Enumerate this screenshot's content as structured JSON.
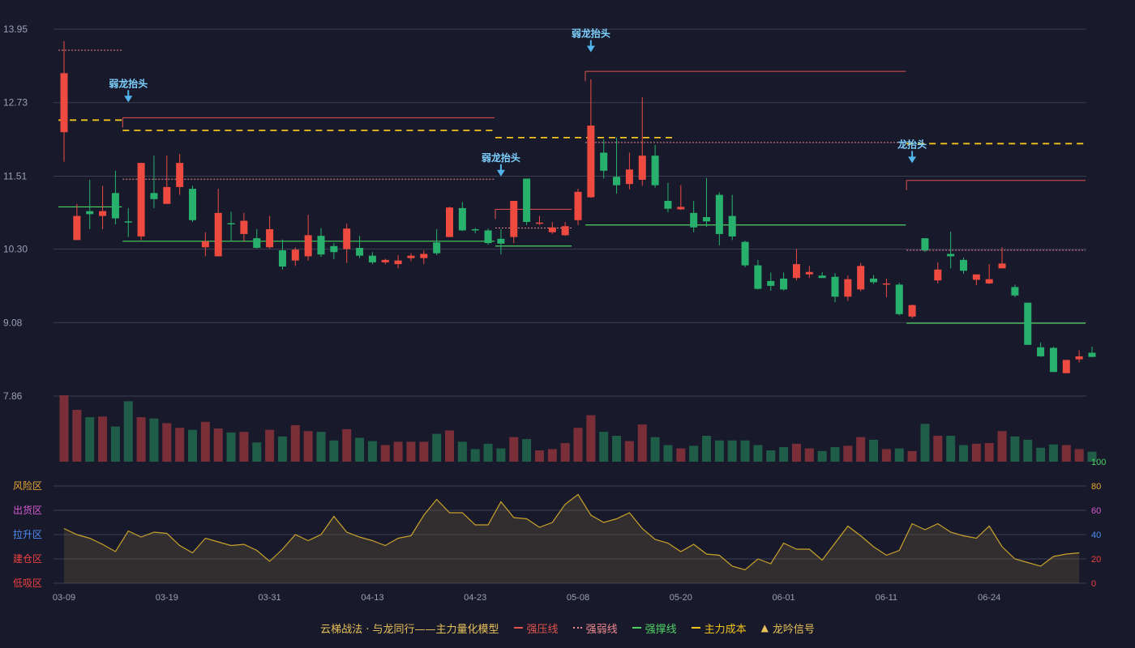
{
  "chart_data": {
    "type": "candlestick",
    "title": "",
    "price_axis": {
      "min": 7.86,
      "max": 13.95,
      "ticks": [
        7.86,
        9.08,
        10.3,
        11.51,
        12.73,
        13.95
      ]
    },
    "indicator_axis": {
      "min": 0,
      "max": 100,
      "ticks": [
        0,
        20,
        40,
        60,
        80,
        100
      ]
    },
    "zones": [
      "低吸区",
      "建仓区",
      "拉升区",
      "出货区",
      "风险区"
    ],
    "date_ticks": [
      {
        "i": 0,
        "label": "03-09"
      },
      {
        "i": 8,
        "label": "03-19"
      },
      {
        "i": 16,
        "label": "03-31"
      },
      {
        "i": 24,
        "label": "04-13"
      },
      {
        "i": 32,
        "label": "04-23"
      },
      {
        "i": 40,
        "label": "05-08"
      },
      {
        "i": 48,
        "label": "05-20"
      },
      {
        "i": 56,
        "label": "06-01"
      },
      {
        "i": 64,
        "label": "06-11"
      },
      {
        "i": 72,
        "label": "06-24"
      }
    ],
    "candles": [
      [
        12.24,
        13.22,
        13.75,
        11.75
      ],
      [
        10.45,
        10.85,
        11.05,
        10.45
      ],
      [
        10.93,
        10.88,
        11.45,
        10.63
      ],
      [
        10.85,
        10.93,
        11.35,
        10.63
      ],
      [
        11.23,
        10.81,
        11.6,
        10.71
      ],
      [
        10.76,
        10.75,
        10.98,
        10.5
      ],
      [
        10.51,
        11.73,
        11.73,
        10.45
      ],
      [
        11.23,
        11.13,
        11.85,
        10.98
      ],
      [
        11.05,
        11.33,
        11.85,
        11.05
      ],
      [
        11.33,
        11.73,
        11.88,
        11.2
      ],
      [
        11.3,
        10.78,
        11.35,
        10.75
      ],
      [
        10.33,
        10.43,
        10.58,
        10.18
      ],
      [
        10.18,
        10.9,
        11.3,
        10.18
      ],
      [
        10.73,
        10.71,
        10.92,
        10.43
      ],
      [
        10.55,
        10.77,
        10.9,
        10.43
      ],
      [
        10.48,
        10.32,
        10.63,
        10.31
      ],
      [
        10.33,
        10.63,
        10.85,
        10.31
      ],
      [
        10.28,
        10.01,
        10.46,
        9.96
      ],
      [
        10.11,
        10.29,
        10.33,
        10.02
      ],
      [
        10.18,
        10.53,
        10.87,
        10.11
      ],
      [
        10.52,
        10.21,
        10.65,
        10.17
      ],
      [
        10.35,
        10.25,
        10.4,
        10.13
      ],
      [
        10.3,
        10.64,
        10.72,
        10.07
      ],
      [
        10.32,
        10.19,
        10.52,
        10.15
      ],
      [
        10.19,
        10.08,
        10.25,
        10.05
      ],
      [
        10.08,
        10.12,
        10.14,
        10.05
      ],
      [
        10.05,
        10.11,
        10.2,
        9.98
      ],
      [
        10.15,
        10.19,
        10.23,
        10.1
      ],
      [
        10.15,
        10.22,
        10.28,
        10.05
      ],
      [
        10.41,
        10.23,
        10.63,
        10.2
      ],
      [
        10.5,
        10.99,
        11.0,
        10.5
      ],
      [
        10.98,
        10.61,
        11.08,
        10.6
      ],
      [
        10.63,
        10.61,
        10.65,
        10.56
      ],
      [
        10.61,
        10.4,
        10.64,
        10.37
      ],
      [
        10.47,
        10.39,
        10.63,
        10.21
      ],
      [
        10.5,
        11.1,
        11.1,
        10.4
      ],
      [
        11.47,
        10.75,
        11.47,
        10.7
      ],
      [
        10.74,
        10.74,
        10.85,
        10.7
      ],
      [
        10.58,
        10.66,
        10.75,
        10.55
      ],
      [
        10.53,
        10.68,
        10.75,
        10.52
      ],
      [
        10.78,
        11.25,
        11.3,
        10.7
      ],
      [
        11.16,
        12.35,
        13.12,
        11.15
      ],
      [
        11.9,
        11.6,
        12.12,
        11.47
      ],
      [
        11.5,
        11.36,
        12.15,
        11.22
      ],
      [
        11.38,
        11.62,
        11.9,
        11.29
      ],
      [
        11.45,
        11.85,
        12.82,
        11.35
      ],
      [
        11.85,
        11.36,
        12.03,
        11.32
      ],
      [
        11.1,
        10.97,
        11.4,
        10.91
      ],
      [
        10.96,
        11.0,
        11.36,
        10.95
      ],
      [
        10.9,
        10.66,
        11.1,
        10.58
      ],
      [
        10.83,
        10.76,
        11.48,
        10.67
      ],
      [
        11.2,
        10.55,
        11.24,
        10.36
      ],
      [
        10.85,
        10.51,
        11.2,
        10.45
      ],
      [
        10.42,
        10.03,
        10.44,
        10.0
      ],
      [
        10.03,
        9.64,
        10.12,
        9.63
      ],
      [
        9.77,
        9.69,
        9.91,
        9.61
      ],
      [
        9.81,
        9.63,
        9.91,
        9.61
      ],
      [
        9.82,
        10.05,
        10.3,
        9.78
      ],
      [
        9.88,
        9.92,
        10.02,
        9.82
      ],
      [
        9.86,
        9.82,
        9.92,
        9.82
      ],
      [
        9.84,
        9.51,
        9.9,
        9.42
      ],
      [
        9.51,
        9.8,
        9.86,
        9.44
      ],
      [
        9.63,
        10.02,
        10.07,
        9.6
      ],
      [
        9.81,
        9.75,
        9.87,
        9.72
      ],
      [
        9.71,
        9.73,
        9.81,
        9.5
      ],
      [
        9.71,
        9.22,
        9.74,
        9.2
      ],
      [
        9.18,
        9.37,
        9.38,
        9.15
      ],
      [
        10.48,
        10.28,
        10.48,
        10.25
      ],
      [
        9.78,
        9.96,
        10.08,
        9.73
      ],
      [
        10.22,
        10.18,
        10.59,
        9.98
      ],
      [
        10.12,
        9.94,
        10.16,
        9.89
      ],
      [
        9.79,
        9.88,
        9.88,
        9.7
      ],
      [
        9.73,
        9.8,
        10.05,
        9.72
      ],
      [
        9.98,
        10.06,
        10.33,
        9.98
      ],
      [
        9.67,
        9.53,
        9.71,
        9.5
      ],
      [
        9.41,
        8.71,
        9.41,
        8.71
      ],
      [
        8.67,
        8.52,
        8.75,
        8.51
      ],
      [
        8.66,
        8.26,
        8.68,
        8.26
      ],
      [
        8.24,
        8.46,
        8.46,
        8.24
      ],
      [
        8.47,
        8.52,
        8.62,
        8.42
      ],
      [
        8.58,
        8.51,
        8.68,
        8.51
      ]
    ],
    "volume": [
      100,
      78,
      67,
      68,
      53,
      91,
      67,
      65,
      58,
      51,
      48,
      60,
      50,
      44,
      45,
      29,
      48,
      38,
      55,
      46,
      45,
      32,
      49,
      36,
      31,
      25,
      30,
      30,
      30,
      42,
      47,
      30,
      19,
      27,
      20,
      37,
      34,
      17,
      19,
      28,
      51,
      70,
      45,
      39,
      31,
      56,
      37,
      25,
      20,
      24,
      39,
      32,
      32,
      32,
      25,
      17,
      22,
      27,
      20,
      16,
      22,
      24,
      37,
      33,
      19,
      20,
      16,
      57,
      39,
      39,
      25,
      27,
      28,
      46,
      38,
      33,
      21,
      26,
      25,
      19,
      15
    ],
    "indicator": [
      45,
      40,
      37,
      32,
      26,
      43,
      38,
      42,
      41,
      31,
      25,
      37,
      34,
      31,
      32,
      27,
      18,
      28,
      40,
      35,
      40,
      55,
      42,
      38,
      35,
      31,
      37,
      39,
      56,
      69,
      58,
      58,
      48,
      48,
      67,
      54,
      53,
      46,
      50,
      65,
      73,
      56,
      50,
      53,
      58,
      45,
      36,
      33,
      26,
      32,
      24,
      23,
      14,
      11,
      20,
      16,
      33,
      28,
      28,
      19,
      33,
      47,
      39,
      30,
      23,
      27,
      49,
      44,
      49,
      42,
      39,
      37,
      47,
      30,
      20,
      17,
      14,
      22,
      24,
      25
    ],
    "signals": [
      {
        "i": 5,
        "price": 12.75,
        "label": "弱龙抬头"
      },
      {
        "i": 34,
        "price": 11.52,
        "label": "弱龙抬头"
      },
      {
        "i": 41,
        "price": 13.58,
        "label": "弱龙抬头"
      },
      {
        "i": 66,
        "price": 11.74,
        "label": "龙抬头"
      }
    ],
    "lines": {
      "pressure": [
        {
          "from": 5,
          "to": 33,
          "value": 12.48
        },
        {
          "from": 34,
          "to": 39,
          "value": 10.96
        },
        {
          "from": 41,
          "to": 65,
          "value": 13.25
        },
        {
          "from": 66,
          "to": 79,
          "value": 11.44
        }
      ],
      "weak": [
        {
          "from": 0,
          "to": 4,
          "value": 13.6
        },
        {
          "from": 5,
          "to": 33,
          "value": 11.46
        },
        {
          "from": 34,
          "to": 39,
          "value": 10.65
        },
        {
          "from": 41,
          "to": 65,
          "value": 12.07
        },
        {
          "from": 66,
          "to": 79,
          "value": 10.28
        }
      ],
      "support": [
        {
          "from": 0,
          "to": 4,
          "value": 11.0
        },
        {
          "from": 5,
          "to": 33,
          "value": 10.43
        },
        {
          "from": 34,
          "to": 39,
          "value": 10.35
        },
        {
          "from": 41,
          "to": 65,
          "value": 10.7
        },
        {
          "from": 66,
          "to": 79,
          "value": 9.07
        }
      ],
      "cost": [
        {
          "from": 0,
          "to": 4,
          "value": 12.44
        },
        {
          "from": 5,
          "to": 33,
          "value": 12.27
        },
        {
          "from": 34,
          "to": 47,
          "value": 12.15
        },
        {
          "from": 66,
          "to": 79,
          "value": 12.05
        }
      ]
    },
    "colors": {
      "background": "#181a2c",
      "up": "#ee4a40",
      "down": "#27b16d",
      "pressure": "#e3524c",
      "weak": "#f08a90",
      "support": "#4dd163",
      "cost": "#f2c31b",
      "signal": "#52b6ec",
      "indicator": "#c9a22a",
      "zone_low": "#ee4040",
      "zone_build": "#ee4040",
      "zone_rise": "#4f8ef0",
      "zone_ship": "#d85ad0",
      "zone_risk": "#e8a530"
    }
  },
  "legend": {
    "title": "云梯战法 · 与龙同行——主力量化模型",
    "items": [
      {
        "key": "pressure",
        "label": "强压线"
      },
      {
        "key": "weak",
        "label": "强弱线"
      },
      {
        "key": "support",
        "label": "强撑线"
      },
      {
        "key": "cost",
        "label": "主力成本"
      },
      {
        "key": "signal",
        "label": "龙吟信号"
      }
    ]
  }
}
